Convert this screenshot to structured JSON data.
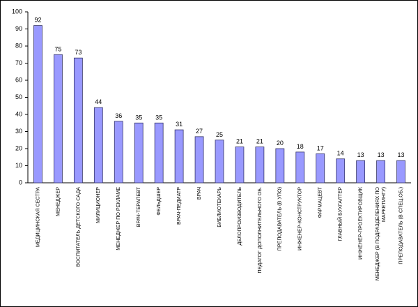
{
  "chart_data": {
    "type": "bar",
    "categories": [
      "МЕДИЦИНСКАЯ СЕСТРА",
      "МЕНЕДЖЕР",
      "ВОСПИТАТЕЛЬ ДЕТСКОГО САДА",
      "МИЛИЦИОНЕР",
      "МЕНЕДЖЕР ПО РЕКЛАМЕ",
      "ВРАЧ-ТЕРАПЕВТ",
      "ФЕЛЬДШЕР",
      "ВРАЧ-ПЕДИАТР",
      "ВРАЧ",
      "БИБЛИОТЕКАРЬ",
      "ДЕЛОПРОИЗВОДИТЕЛЬ",
      "ПЕДАГОГ ДОПОЛНИТЕЛЬНОГО ОБ.",
      "ПРЕПОДАВАТЕЛЬ (В УПО)",
      "ИНЖЕНЕР-КОНСТРУКТОР",
      "ФАРМАЦЕВТ",
      "ГЛАВНЫЙ БУХГАЛТЕР",
      "ИНЖЕНЕР-ПРОЕКТИРОВЩИК",
      "МЕНЕДЖЕР (В ПОДРАЗДЕЛЕНИЯХ ПО\nМАРКЕТИНГУ)",
      "ПРЕПОДАВАТЕЛЬ (В СПЕЦ.ОБ.)"
    ],
    "values": [
      92,
      75,
      73,
      44,
      36,
      35,
      35,
      31,
      27,
      25,
      21,
      21,
      20,
      18,
      17,
      14,
      13,
      13,
      13
    ],
    "color": "#9999ff",
    "ylim": [
      0,
      100
    ],
    "yticks": [
      0,
      10,
      20,
      30,
      40,
      50,
      60,
      70,
      80,
      90,
      100
    ],
    "grid": false
  }
}
